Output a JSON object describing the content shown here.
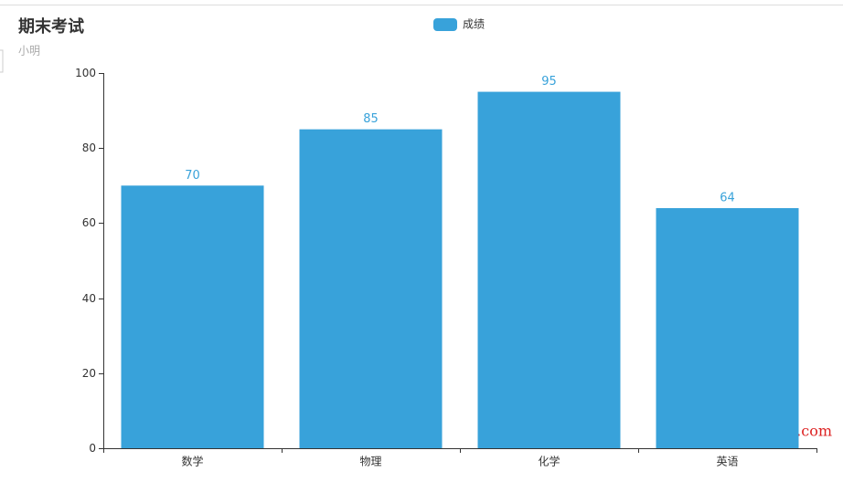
{
  "chart_data": {
    "type": "bar",
    "title": "期末考试",
    "subtitle": "小明",
    "categories": [
      "数学",
      "物理",
      "化学",
      "英语"
    ],
    "series": [
      {
        "name": "成绩",
        "color": "#38a2da",
        "values": [
          70,
          85,
          95,
          64
        ]
      }
    ],
    "ylim": [
      0,
      100
    ],
    "yticks": [
      0,
      20,
      40,
      60,
      80,
      100
    ],
    "grid": false,
    "legend": "top",
    "show_value_labels": true,
    "watermark": "Yuucn.com"
  }
}
